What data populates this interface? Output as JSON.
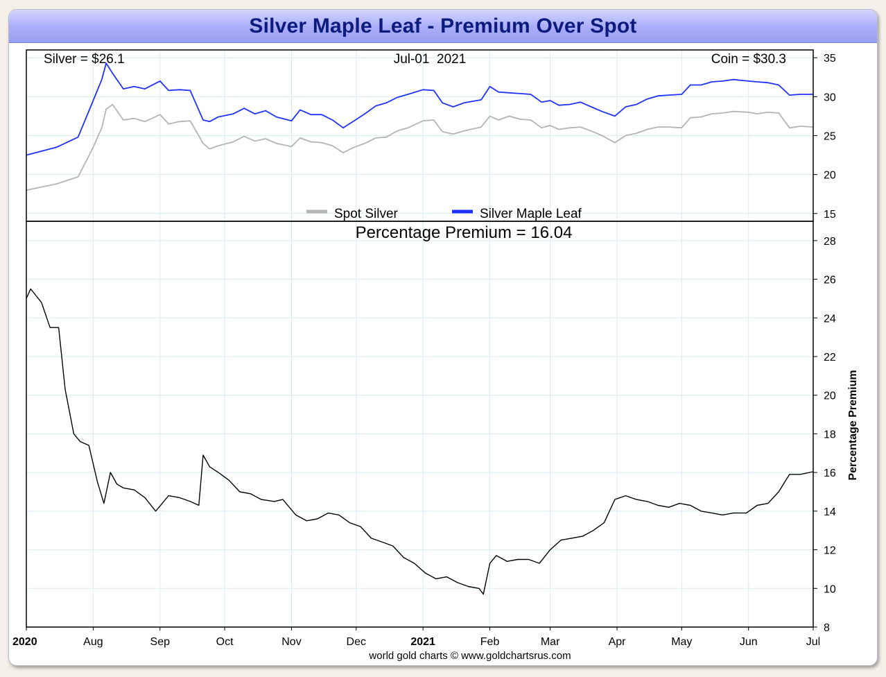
{
  "title": "Silver Maple Leaf - Premium Over Spot",
  "colors": {
    "spot": "#b4b4b4",
    "coin": "#1e32ff",
    "premium": "#000000",
    "grid": "#d8ecf5",
    "title_text": "#0c1b7e"
  },
  "footer": "world gold charts © www.goldchartsrus.com",
  "chart_data": [
    {
      "type": "line",
      "subtitle_left": "Silver = $26.1",
      "subtitle_center": "Jul-01  2021",
      "subtitle_right": "Coin = $30.3",
      "ylim": [
        14,
        36
      ],
      "yticks": [
        "15",
        "20",
        "25",
        "30",
        "35"
      ],
      "grid": true,
      "legend_position": "bottom-center",
      "x": [
        "2020-07-01",
        "2020-07-15",
        "2020-07-25",
        "2020-08-01",
        "2020-08-05",
        "2020-08-07",
        "2020-08-10",
        "2020-08-15",
        "2020-08-20",
        "2020-08-25",
        "2020-09-01",
        "2020-09-05",
        "2020-09-10",
        "2020-09-15",
        "2020-09-21",
        "2020-09-24",
        "2020-09-28",
        "2020-10-05",
        "2020-10-10",
        "2020-10-15",
        "2020-10-20",
        "2020-10-25",
        "2020-11-01",
        "2020-11-05",
        "2020-11-10",
        "2020-11-15",
        "2020-11-20",
        "2020-11-25",
        "2020-11-30",
        "2020-12-05",
        "2020-12-10",
        "2020-12-15",
        "2020-12-20",
        "2020-12-25",
        "2021-01-01",
        "2021-01-06",
        "2021-01-10",
        "2021-01-15",
        "2021-01-20",
        "2021-01-28",
        "2021-02-01",
        "2021-02-05",
        "2021-02-10",
        "2021-02-15",
        "2021-02-20",
        "2021-02-25",
        "2021-03-01",
        "2021-03-05",
        "2021-03-10",
        "2021-03-15",
        "2021-03-20",
        "2021-03-25",
        "2021-03-31",
        "2021-04-05",
        "2021-04-10",
        "2021-04-15",
        "2021-04-20",
        "2021-04-25",
        "2021-05-01",
        "2021-05-05",
        "2021-05-10",
        "2021-05-15",
        "2021-05-20",
        "2021-05-25",
        "2021-06-01",
        "2021-06-05",
        "2021-06-10",
        "2021-06-15",
        "2021-06-20",
        "2021-06-25",
        "2021-07-01"
      ],
      "series": [
        {
          "name": "Spot Silver",
          "values": [
            18.0,
            18.8,
            19.7,
            23.5,
            26.0,
            28.4,
            29.0,
            27.0,
            27.2,
            26.8,
            27.7,
            26.5,
            26.8,
            26.9,
            24.0,
            23.3,
            23.7,
            24.2,
            24.9,
            24.3,
            24.6,
            24.0,
            23.6,
            24.7,
            24.2,
            24.1,
            23.7,
            22.8,
            23.5,
            24.0,
            24.7,
            24.8,
            25.6,
            26.0,
            26.9,
            27.0,
            25.5,
            25.2,
            25.6,
            26.1,
            27.5,
            27.0,
            27.5,
            27.1,
            27.0,
            26.0,
            26.3,
            25.8,
            26.0,
            26.1,
            25.6,
            25.0,
            24.1,
            25.0,
            25.3,
            25.8,
            26.1,
            26.1,
            26.0,
            27.3,
            27.4,
            27.8,
            27.9,
            28.1,
            28.0,
            27.8,
            28.0,
            27.9,
            26.0,
            26.2,
            26.1
          ]
        },
        {
          "name": "Silver Maple Leaf",
          "values": [
            22.5,
            23.5,
            24.8,
            29.5,
            32.2,
            34.3,
            33.0,
            31.0,
            31.3,
            31.0,
            32.0,
            30.8,
            30.9,
            30.8,
            27.0,
            26.8,
            27.4,
            27.8,
            28.5,
            27.8,
            28.2,
            27.4,
            26.9,
            28.3,
            27.7,
            27.7,
            27.0,
            26.0,
            26.9,
            27.8,
            28.8,
            29.2,
            29.9,
            30.3,
            30.9,
            30.8,
            29.2,
            28.7,
            29.2,
            29.6,
            31.3,
            30.6,
            30.5,
            30.4,
            30.3,
            29.3,
            29.5,
            28.9,
            29.0,
            29.3,
            28.7,
            28.1,
            27.5,
            28.7,
            29.0,
            29.7,
            30.1,
            30.2,
            30.3,
            31.5,
            31.5,
            31.9,
            32.0,
            32.2,
            32.0,
            31.9,
            31.8,
            31.5,
            30.2,
            30.3,
            30.3
          ]
        }
      ]
    },
    {
      "type": "line",
      "title": "Percentage Premium = 16.04",
      "ylabel": "Percentage Premium",
      "ylim": [
        8,
        29
      ],
      "yticks": [
        "8",
        "10",
        "12",
        "14",
        "16",
        "18",
        "20",
        "22",
        "24",
        "26",
        "28"
      ],
      "grid": true,
      "x_tick_labels": [
        {
          "label": "2020",
          "date": "2020-07-01",
          "bold": true
        },
        {
          "label": "Aug",
          "date": "2020-08-01",
          "bold": false
        },
        {
          "label": "Sep",
          "date": "2020-09-01",
          "bold": false
        },
        {
          "label": "Oct",
          "date": "2020-10-01",
          "bold": false
        },
        {
          "label": "Nov",
          "date": "2020-11-01",
          "bold": false
        },
        {
          "label": "Dec",
          "date": "2020-12-01",
          "bold": false
        },
        {
          "label": "2021",
          "date": "2021-01-01",
          "bold": true
        },
        {
          "label": "Feb",
          "date": "2021-02-01",
          "bold": false
        },
        {
          "label": "Mar",
          "date": "2021-03-01",
          "bold": false
        },
        {
          "label": "Apr",
          "date": "2021-04-01",
          "bold": false
        },
        {
          "label": "May",
          "date": "2021-05-01",
          "bold": false
        },
        {
          "label": "Jun",
          "date": "2021-06-01",
          "bold": false
        },
        {
          "label": "Jul",
          "date": "2021-07-01",
          "bold": false
        }
      ],
      "x": [
        "2020-07-01",
        "2020-07-03",
        "2020-07-08",
        "2020-07-12",
        "2020-07-16",
        "2020-07-19",
        "2020-07-23",
        "2020-07-26",
        "2020-07-30",
        "2020-08-03",
        "2020-08-06",
        "2020-08-09",
        "2020-08-12",
        "2020-08-15",
        "2020-08-20",
        "2020-08-25",
        "2020-08-30",
        "2020-09-05",
        "2020-09-10",
        "2020-09-15",
        "2020-09-19",
        "2020-09-21",
        "2020-09-24",
        "2020-09-28",
        "2020-10-03",
        "2020-10-08",
        "2020-10-13",
        "2020-10-18",
        "2020-10-24",
        "2020-10-28",
        "2020-11-03",
        "2020-11-08",
        "2020-11-13",
        "2020-11-18",
        "2020-11-23",
        "2020-11-28",
        "2020-12-03",
        "2020-12-08",
        "2020-12-13",
        "2020-12-18",
        "2020-12-23",
        "2020-12-28",
        "2021-01-02",
        "2021-01-07",
        "2021-01-12",
        "2021-01-17",
        "2021-01-22",
        "2021-01-27",
        "2021-01-29",
        "2021-02-01",
        "2021-02-04",
        "2021-02-09",
        "2021-02-14",
        "2021-02-19",
        "2021-02-24",
        "2021-03-01",
        "2021-03-06",
        "2021-03-11",
        "2021-03-16",
        "2021-03-21",
        "2021-03-26",
        "2021-03-31",
        "2021-04-05",
        "2021-04-10",
        "2021-04-15",
        "2021-04-20",
        "2021-04-25",
        "2021-04-30",
        "2021-05-05",
        "2021-05-10",
        "2021-05-15",
        "2021-05-20",
        "2021-05-25",
        "2021-05-31",
        "2021-06-05",
        "2021-06-10",
        "2021-06-15",
        "2021-06-20",
        "2021-06-25",
        "2021-07-01"
      ],
      "series": [
        {
          "name": "",
          "values": [
            25.0,
            25.5,
            24.8,
            23.5,
            23.5,
            20.3,
            18.0,
            17.6,
            17.4,
            15.5,
            14.4,
            16.0,
            15.4,
            15.2,
            15.1,
            14.7,
            14.0,
            14.8,
            14.7,
            14.5,
            14.3,
            16.9,
            16.3,
            16.0,
            15.6,
            15.0,
            14.9,
            14.6,
            14.5,
            14.6,
            13.8,
            13.5,
            13.6,
            13.9,
            13.8,
            13.4,
            13.2,
            12.6,
            12.4,
            12.2,
            11.6,
            11.3,
            10.8,
            10.5,
            10.6,
            10.3,
            10.1,
            10.0,
            9.7,
            11.3,
            11.7,
            11.4,
            11.5,
            11.5,
            11.3,
            12.0,
            12.5,
            12.6,
            12.7,
            13.0,
            13.4,
            14.6,
            14.8,
            14.6,
            14.5,
            14.3,
            14.2,
            14.4,
            14.3,
            14.0,
            13.9,
            13.8,
            13.9,
            13.9,
            14.3,
            14.4,
            15.0,
            15.9,
            15.9,
            16.04
          ]
        }
      ]
    }
  ]
}
